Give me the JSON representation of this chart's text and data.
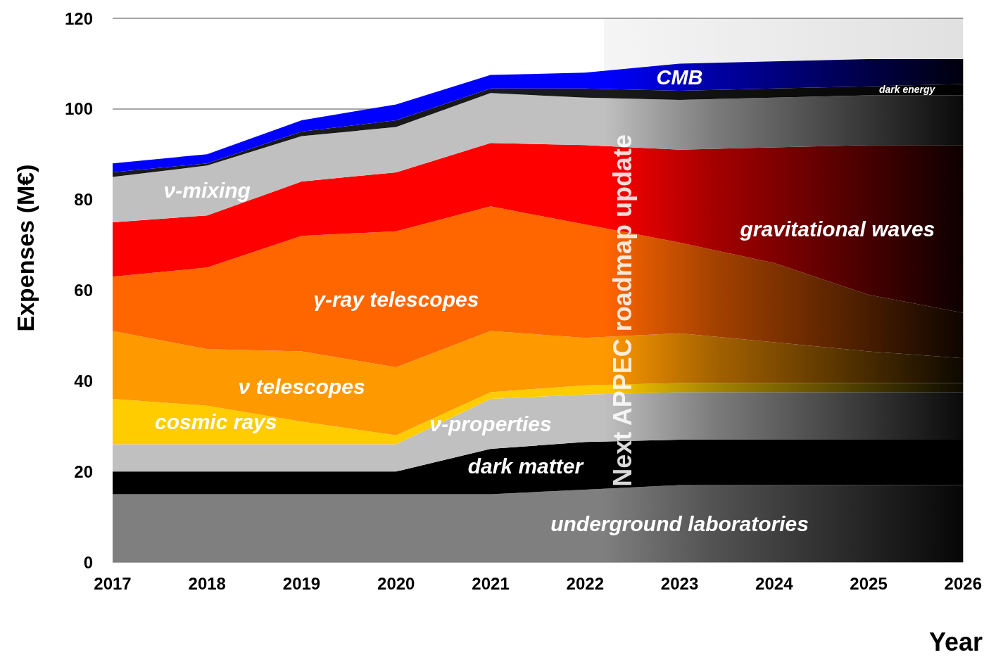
{
  "chart_data": {
    "type": "area",
    "stacked": true,
    "xlabel": "Year",
    "ylabel": "Expenses (M€)",
    "x": [
      2017,
      2018,
      2019,
      2020,
      2021,
      2022,
      2023,
      2024,
      2025,
      2026
    ],
    "xlim": [
      2017,
      2026
    ],
    "xticks": [
      2017,
      2018,
      2019,
      2020,
      2021,
      2022,
      2023,
      2024,
      2025,
      2026
    ],
    "ylim": [
      0,
      120
    ],
    "yticks": [
      0,
      20,
      40,
      60,
      80,
      100,
      120
    ],
    "grid": "y",
    "legend": false,
    "series": [
      {
        "name": "underground laboratories",
        "color": "#7f7f7f",
        "values": [
          15,
          15,
          15,
          15,
          15,
          16,
          17,
          17,
          17,
          17
        ]
      },
      {
        "name": "dark matter",
        "color": "#000000",
        "values": [
          5,
          5,
          5,
          5,
          10,
          10.5,
          10,
          10,
          10,
          10
        ]
      },
      {
        "name": "ν-properties",
        "color": "#c0c0c0",
        "values": [
          6,
          6,
          6,
          6,
          11,
          10.5,
          10.5,
          10.5,
          10.5,
          10.5
        ]
      },
      {
        "name": "cosmic rays",
        "color": "#ffcc00",
        "values": [
          10,
          8.5,
          5,
          2,
          1.5,
          2,
          2,
          2,
          2,
          2
        ]
      },
      {
        "name": "ν telescopes",
        "color": "#ff9900",
        "values": [
          15,
          12.5,
          15.5,
          15,
          13.5,
          10.5,
          11,
          9,
          7,
          5.5
        ]
      },
      {
        "name": "γ-ray telescopes",
        "color": "#ff6600",
        "values": [
          12,
          18,
          25.5,
          30,
          27.5,
          25,
          20,
          17.5,
          12.5,
          10
        ]
      },
      {
        "name": "gravitational waves",
        "color": "#ff0000",
        "values": [
          12,
          11.5,
          12,
          13,
          14,
          17.5,
          20.5,
          25.5,
          33,
          37
        ]
      },
      {
        "name": "ν-mixing",
        "color": "#c0c0c0",
        "values": [
          10,
          11,
          10,
          10,
          11,
          10.5,
          11,
          11,
          11,
          11
        ]
      },
      {
        "name": "dark energy",
        "color": "#1a1a1a",
        "values": [
          1,
          0.5,
          1,
          1.5,
          1,
          2,
          2,
          2,
          2,
          2.5
        ]
      },
      {
        "name": "CMB",
        "color": "#0000ff",
        "values": [
          2,
          2,
          2.5,
          3.5,
          3,
          3.5,
          6,
          6,
          6,
          5.5
        ]
      }
    ],
    "bands": [
      {
        "axis": "x",
        "from": 2022.2,
        "to": 2026,
        "label": "Next APPEC roadmap update",
        "color": "#000000"
      }
    ]
  }
}
